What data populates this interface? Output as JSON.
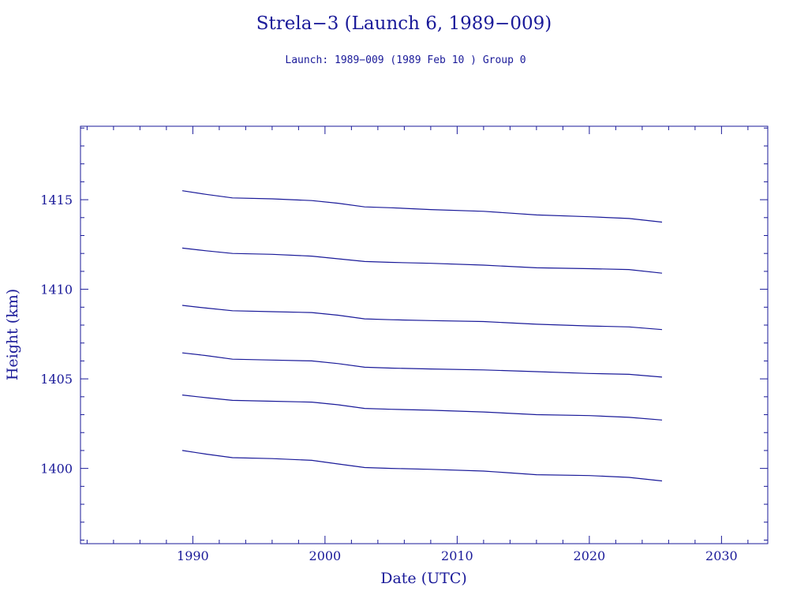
{
  "chart_data": {
    "type": "line",
    "title": "Strela−3 (Launch 6, 1989−009)",
    "subtitle": "Launch: 1989−009  (1989 Feb 10 )  Group 0",
    "xlabel": "Date (UTC)",
    "ylabel": "Height (km)",
    "xlim": [
      1981.5,
      2033.5
    ],
    "ylim": [
      1395.8,
      1419.1
    ],
    "x_ticks": [
      1990,
      2000,
      2010,
      2020,
      2030
    ],
    "x_tick_labels": [
      "1990",
      "2000",
      "2010",
      "2020",
      "2030"
    ],
    "y_ticks": [
      1400,
      1405,
      1410,
      1415
    ],
    "y_tick_labels": [
      "1400",
      "1405",
      "1410",
      "1415"
    ],
    "x_minor_step": 2,
    "y_minor_step": 1,
    "grid": false,
    "line_color": "#1a1a99",
    "series": [
      {
        "x": [
          1989.2,
          1991,
          1993,
          1996,
          1999,
          2001,
          2003,
          2005,
          2008,
          2012,
          2016,
          2020,
          2023,
          2025.5
        ],
        "values": [
          1415.5,
          1415.3,
          1415.1,
          1415.05,
          1414.95,
          1414.8,
          1414.6,
          1414.55,
          1414.45,
          1414.35,
          1414.15,
          1414.05,
          1413.95,
          1413.75
        ]
      },
      {
        "x": [
          1989.2,
          1991,
          1993,
          1996,
          1999,
          2001,
          2003,
          2005,
          2008,
          2012,
          2016,
          2020,
          2023,
          2025.5
        ],
        "values": [
          1412.3,
          1412.15,
          1412.0,
          1411.95,
          1411.85,
          1411.7,
          1411.55,
          1411.5,
          1411.45,
          1411.35,
          1411.2,
          1411.15,
          1411.1,
          1410.9
        ]
      },
      {
        "x": [
          1989.2,
          1991,
          1993,
          1996,
          1999,
          2001,
          2003,
          2005,
          2008,
          2012,
          2016,
          2020,
          2023,
          2025.5
        ],
        "values": [
          1409.1,
          1408.95,
          1408.8,
          1408.75,
          1408.7,
          1408.55,
          1408.35,
          1408.3,
          1408.25,
          1408.2,
          1408.05,
          1407.95,
          1407.9,
          1407.75
        ]
      },
      {
        "x": [
          1989.2,
          1991,
          1993,
          1996,
          1999,
          2001,
          2003,
          2005,
          2008,
          2012,
          2016,
          2020,
          2023,
          2025.5
        ],
        "values": [
          1406.45,
          1406.3,
          1406.1,
          1406.05,
          1406.0,
          1405.85,
          1405.65,
          1405.6,
          1405.55,
          1405.5,
          1405.4,
          1405.3,
          1405.25,
          1405.1
        ]
      },
      {
        "x": [
          1989.2,
          1991,
          1993,
          1996,
          1999,
          2001,
          2003,
          2005,
          2008,
          2012,
          2016,
          2020,
          2023,
          2025.5
        ],
        "values": [
          1404.1,
          1403.95,
          1403.8,
          1403.75,
          1403.7,
          1403.55,
          1403.35,
          1403.3,
          1403.25,
          1403.15,
          1403.0,
          1402.95,
          1402.85,
          1402.7
        ]
      },
      {
        "x": [
          1989.2,
          1991,
          1993,
          1996,
          1999,
          2001,
          2003,
          2005,
          2008,
          2012,
          2016,
          2020,
          2023,
          2025.5
        ],
        "values": [
          1401.0,
          1400.8,
          1400.6,
          1400.55,
          1400.45,
          1400.25,
          1400.05,
          1400.0,
          1399.95,
          1399.85,
          1399.65,
          1399.6,
          1399.5,
          1399.3
        ]
      }
    ]
  }
}
